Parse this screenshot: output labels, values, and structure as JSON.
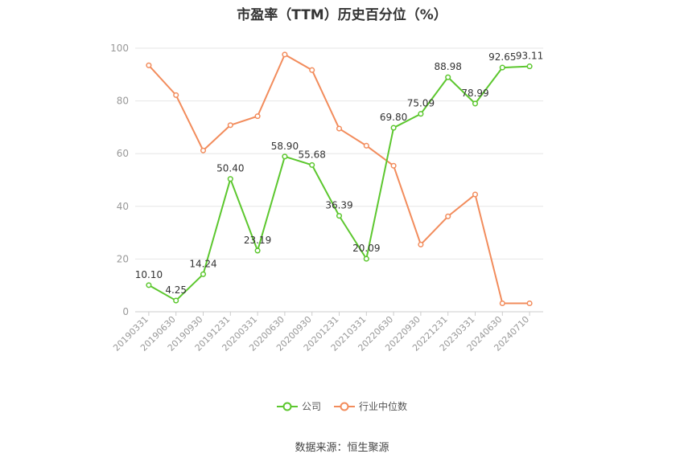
{
  "chart_data": {
    "type": "line",
    "title": "市盈率（TTM）历史百分位（%）",
    "categories": [
      "20190331",
      "20190630",
      "20190930",
      "20191231",
      "20200331",
      "20200630",
      "20200930",
      "20201231",
      "20210331",
      "20220630",
      "20220930",
      "20221231",
      "20230331",
      "20240630",
      "20240710"
    ],
    "ylim": [
      0,
      100
    ],
    "yticks": [
      0,
      20,
      40,
      60,
      80,
      100
    ],
    "grid": true,
    "legend_position": "bottom",
    "series": [
      {
        "name": "公司",
        "color": "#5cc72e",
        "values": [
          10.1,
          4.25,
          14.24,
          50.4,
          23.19,
          58.9,
          55.68,
          36.39,
          20.09,
          69.8,
          75.09,
          88.98,
          78.99,
          92.65,
          93.11
        ],
        "labels": [
          "10.10",
          "4.25",
          "14.24",
          "50.40",
          "23.19",
          "58.90",
          "55.68",
          "36.39",
          "20.09",
          "69.80",
          "75.09",
          "88.98",
          "78.99",
          "92.65",
          "93.11"
        ]
      },
      {
        "name": "行业中位数",
        "color": "#f28c5c",
        "values": [
          93.5,
          82.2,
          61.2,
          70.8,
          74.2,
          97.6,
          91.7,
          69.5,
          63.0,
          55.4,
          25.5,
          36.2,
          44.5,
          3.2,
          3.2
        ]
      }
    ]
  },
  "source_text": "数据来源：恒生聚源"
}
